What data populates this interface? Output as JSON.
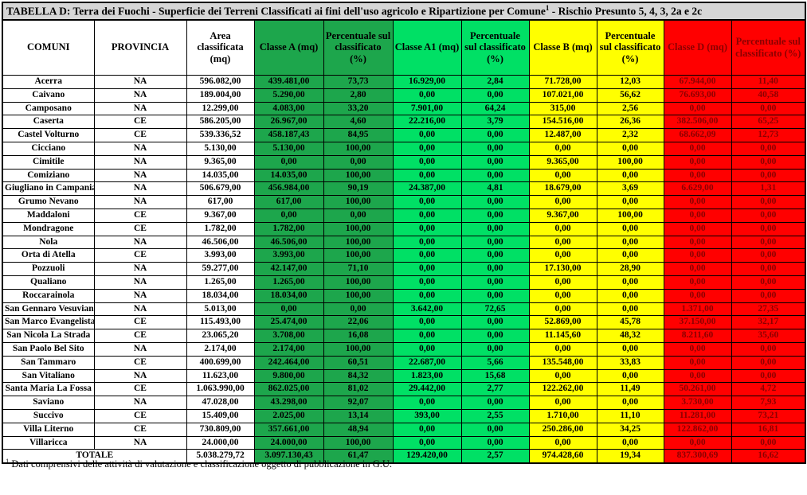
{
  "title": {
    "pre": "TABELLA D: Terra dei Fuochi - Superficie dei Terreni Classificati ai fini dell'uso agricolo e Ripartizione per Comune",
    "sup": "1",
    "post": " - Rischio Presunto 5, 4, 3, 2a e 2c"
  },
  "footnote": {
    "marker": "1",
    "text": " Dati comprensivi delle attività di valutazione e classificazione oggetto di pubblicazione in G.U."
  },
  "colors": {
    "title_bg": "#d6d6d6",
    "white_bg": "#ffffff",
    "classe_a_bg": "#1da64c",
    "classe_a1_bg": "#00e065",
    "classe_b_bg": "#ffff00",
    "classe_d_bg": "#ff0000",
    "classe_d_text": "#8b0000",
    "black_text": "#000000",
    "border": "#000000"
  },
  "columns": [
    {
      "id": "comuni",
      "label": "COMUNI",
      "bg": "#ffffff",
      "fg": "#000000"
    },
    {
      "id": "provincia",
      "label": "PROVINCIA",
      "bg": "#ffffff",
      "fg": "#000000"
    },
    {
      "id": "area",
      "label": "Area classificata (mq)",
      "bg": "#ffffff",
      "fg": "#000000"
    },
    {
      "id": "classe_a",
      "label": "Classe A (mq)",
      "bg": "#1da64c",
      "fg": "#000000"
    },
    {
      "id": "perc_a",
      "label": "Percentuale sul classificato (%)",
      "bg": "#1da64c",
      "fg": "#000000"
    },
    {
      "id": "classe_a1",
      "label": "Classe A1 (mq)",
      "bg": "#00e065",
      "fg": "#000000"
    },
    {
      "id": "perc_a1",
      "label": "Percentuale sul classificato (%)",
      "bg": "#00e065",
      "fg": "#000000"
    },
    {
      "id": "classe_b",
      "label": "Classe B (mq)",
      "bg": "#ffff00",
      "fg": "#000000"
    },
    {
      "id": "perc_b",
      "label": "Percentuale sul classificato (%)",
      "bg": "#ffff00",
      "fg": "#000000"
    },
    {
      "id": "classe_d",
      "label": "Classe D (mq)",
      "bg": "#ff0000",
      "fg": "#8b0000"
    },
    {
      "id": "perc_d",
      "label": "Percentuale sul classificato (%)",
      "bg": "#ff0000",
      "fg": "#8b0000"
    }
  ],
  "rows": [
    [
      "Acerra",
      "NA",
      "596.082,00",
      "439.481,00",
      "73,73",
      "16.929,00",
      "2,84",
      "71.728,00",
      "12,03",
      "67.944,00",
      "11,40"
    ],
    [
      "Caivano",
      "NA",
      "189.004,00",
      "5.290,00",
      "2,80",
      "0,00",
      "0,00",
      "107.021,00",
      "56,62",
      "76.693,00",
      "40,58"
    ],
    [
      "Camposano",
      "NA",
      "12.299,00",
      "4.083,00",
      "33,20",
      "7.901,00",
      "64,24",
      "315,00",
      "2,56",
      "0,00",
      "0,00"
    ],
    [
      "Caserta",
      "CE",
      "586.205,00",
      "26.967,00",
      "4,60",
      "22.216,00",
      "3,79",
      "154.516,00",
      "26,36",
      "382.506,00",
      "65,25"
    ],
    [
      "Castel Volturno",
      "CE",
      "539.336,52",
      "458.187,43",
      "84,95",
      "0,00",
      "0,00",
      "12.487,00",
      "2,32",
      "68.662,09",
      "12,73"
    ],
    [
      "Cicciano",
      "NA",
      "5.130,00",
      "5.130,00",
      "100,00",
      "0,00",
      "0,00",
      "0,00",
      "0,00",
      "0,00",
      "0,00"
    ],
    [
      "Cimitile",
      "NA",
      "9.365,00",
      "0,00",
      "0,00",
      "0,00",
      "0,00",
      "9.365,00",
      "100,00",
      "0,00",
      "0,00"
    ],
    [
      "Comiziano",
      "NA",
      "14.035,00",
      "14.035,00",
      "100,00",
      "0,00",
      "0,00",
      "0,00",
      "0,00",
      "0,00",
      "0,00"
    ],
    [
      "Giugliano in Campania",
      "NA",
      "506.679,00",
      "456.984,00",
      "90,19",
      "24.387,00",
      "4,81",
      "18.679,00",
      "3,69",
      "6.629,00",
      "1,31"
    ],
    [
      "Grumo Nevano",
      "NA",
      "617,00",
      "617,00",
      "100,00",
      "0,00",
      "0,00",
      "0,00",
      "0,00",
      "0,00",
      "0,00"
    ],
    [
      "Maddaloni",
      "CE",
      "9.367,00",
      "0,00",
      "0,00",
      "0,00",
      "0,00",
      "9.367,00",
      "100,00",
      "0,00",
      "0,00"
    ],
    [
      "Mondragone",
      "CE",
      "1.782,00",
      "1.782,00",
      "100,00",
      "0,00",
      "0,00",
      "0,00",
      "0,00",
      "0,00",
      "0,00"
    ],
    [
      "Nola",
      "NA",
      "46.506,00",
      "46.506,00",
      "100,00",
      "0,00",
      "0,00",
      "0,00",
      "0,00",
      "0,00",
      "0,00"
    ],
    [
      "Orta di Atella",
      "CE",
      "3.993,00",
      "3.993,00",
      "100,00",
      "0,00",
      "0,00",
      "0,00",
      "0,00",
      "0,00",
      "0,00"
    ],
    [
      "Pozzuoli",
      "NA",
      "59.277,00",
      "42.147,00",
      "71,10",
      "0,00",
      "0,00",
      "17.130,00",
      "28,90",
      "0,00",
      "0,00"
    ],
    [
      "Qualiano",
      "NA",
      "1.265,00",
      "1.265,00",
      "100,00",
      "0,00",
      "0,00",
      "0,00",
      "0,00",
      "0,00",
      "0,00"
    ],
    [
      "Roccarainola",
      "NA",
      "18.034,00",
      "18.034,00",
      "100,00",
      "0,00",
      "0,00",
      "0,00",
      "0,00",
      "0,00",
      "0,00"
    ],
    [
      "San Gennaro Vesuviano",
      "NA",
      "5.013,00",
      "0,00",
      "0,00",
      "3.642,00",
      "72,65",
      "0,00",
      "0,00",
      "1.371,00",
      "27,35"
    ],
    [
      "San Marco Evangelista",
      "CE",
      "115.493,00",
      "25.474,00",
      "22,06",
      "0,00",
      "0,00",
      "52.869,00",
      "45,78",
      "37.150,00",
      "32,17"
    ],
    [
      "San Nicola La Strada",
      "CE",
      "23.065,20",
      "3.708,00",
      "16,08",
      "0,00",
      "0,00",
      "11.145,60",
      "48,32",
      "8.211,60",
      "35,60"
    ],
    [
      "San Paolo Bel Sito",
      "NA",
      "2.174,00",
      "2.174,00",
      "100,00",
      "0,00",
      "0,00",
      "0,00",
      "0,00",
      "0,00",
      "0,00"
    ],
    [
      "San Tammaro",
      "CE",
      "400.699,00",
      "242.464,00",
      "60,51",
      "22.687,00",
      "5,66",
      "135.548,00",
      "33,83",
      "0,00",
      "0,00"
    ],
    [
      "San Vitaliano",
      "NA",
      "11.623,00",
      "9.800,00",
      "84,32",
      "1.823,00",
      "15,68",
      "0,00",
      "0,00",
      "0,00",
      "0,00"
    ],
    [
      "Santa Maria La Fossa",
      "CE",
      "1.063.990,00",
      "862.025,00",
      "81,02",
      "29.442,00",
      "2,77",
      "122.262,00",
      "11,49",
      "50.261,00",
      "4,72"
    ],
    [
      "Saviano",
      "NA",
      "47.028,00",
      "43.298,00",
      "92,07",
      "0,00",
      "0,00",
      "0,00",
      "0,00",
      "3.730,00",
      "7,93"
    ],
    [
      "Succivo",
      "CE",
      "15.409,00",
      "2.025,00",
      "13,14",
      "393,00",
      "2,55",
      "1.710,00",
      "11,10",
      "11.281,00",
      "73,21"
    ],
    [
      "Villa Literno",
      "CE",
      "730.809,00",
      "357.661,00",
      "48,94",
      "0,00",
      "0,00",
      "250.286,00",
      "34,25",
      "122.862,00",
      "16,81"
    ],
    [
      "Villaricca",
      "NA",
      "24.000,00",
      "24.000,00",
      "100,00",
      "0,00",
      "0,00",
      "0,00",
      "0,00",
      "0,00",
      "0,00"
    ]
  ],
  "total": {
    "label": "TOTALE",
    "values": [
      "5.038.279,72",
      "3.097.130,43",
      "61,47",
      "129.420,00",
      "2,57",
      "974.428,60",
      "19,34",
      "837.300,69",
      "16,62"
    ]
  }
}
